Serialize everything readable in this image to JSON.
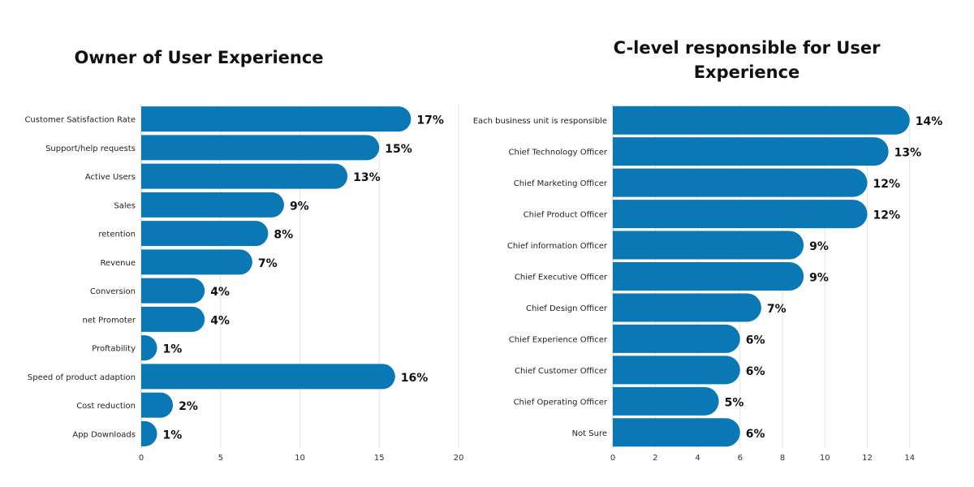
{
  "chart_data": [
    {
      "type": "bar",
      "orientation": "horizontal",
      "title": "Owner of User Experience",
      "categories": [
        "Customer Satisfaction Rate",
        "Support/help requests",
        "Active Users",
        "Sales",
        "retention",
        "Revenue",
        "Conversion",
        "net Promoter",
        "Proftability",
        "Speed of product adaption",
        "Cost reduction",
        "App Downloads"
      ],
      "values": [
        17,
        15,
        13,
        9,
        8,
        7,
        4,
        4,
        1,
        16,
        2,
        1
      ],
      "value_labels": [
        "17%",
        "15%",
        "13%",
        "9%",
        "8%",
        "7%",
        "4%",
        "4%",
        "1%",
        "16%",
        "2%",
        "1%"
      ],
      "xlim": [
        0,
        20
      ],
      "xticks": [
        0,
        5,
        10,
        15,
        20
      ],
      "xtick_labels": [
        "0",
        "5",
        "10",
        "15",
        "20"
      ],
      "grid": true,
      "color": "#0a78b4"
    },
    {
      "type": "bar",
      "orientation": "horizontal",
      "title": "C-level responsible for User Experience",
      "categories": [
        "Each business unit is responsible",
        "Chief Technology Officer",
        "Chief Marketing Officer",
        "Chief Product Officer",
        "Chief information Officer",
        "Chief Executive Officer",
        "Chief Design Officer",
        "Chief Experience Officer",
        "Chief Customer Officer",
        "Chief Operating Officer",
        "Not Sure"
      ],
      "values": [
        14,
        13,
        12,
        12,
        9,
        9,
        7,
        6,
        6,
        5,
        6
      ],
      "value_labels": [
        "14%",
        "13%",
        "12%",
        "12%",
        "9%",
        "9%",
        "7%",
        "6%",
        "6%",
        "5%",
        "6%"
      ],
      "xlim": [
        0,
        14.2
      ],
      "xticks": [
        0,
        2,
        4,
        6,
        8,
        10,
        12,
        14
      ],
      "xtick_labels": [
        "0",
        "2",
        "4",
        "6",
        "8",
        "10",
        "12",
        "14"
      ],
      "grid": true,
      "color": "#0a78b4"
    }
  ]
}
